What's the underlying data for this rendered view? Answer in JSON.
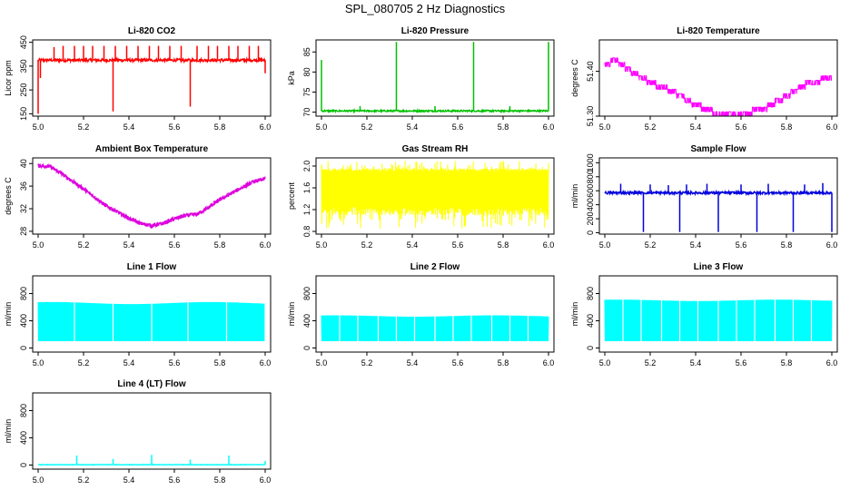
{
  "title": "SPL_080705  2 Hz Diagnostics",
  "chart_data": [
    {
      "type": "line",
      "title": "Li-820 CO2",
      "ylabel": "Licor ppm",
      "xlabel": "",
      "xlim": [
        5.0,
        6.0
      ],
      "ylim": [
        140,
        460
      ],
      "xticks": [
        "5.0",
        "5.2",
        "5.4",
        "5.6",
        "5.8",
        "6.0"
      ],
      "yticks": [
        "150",
        "250",
        "350",
        "450"
      ],
      "color": "#ff0000",
      "pattern": "flat",
      "base": 375,
      "noise": 6,
      "spikes": [
        {
          "x": 5.0,
          "y": 150
        },
        {
          "x": 5.01,
          "y": 300
        },
        {
          "x": 5.07,
          "y": 430
        },
        {
          "x": 5.11,
          "y": 435
        },
        {
          "x": 5.16,
          "y": 435
        },
        {
          "x": 5.2,
          "y": 435
        },
        {
          "x": 5.24,
          "y": 435
        },
        {
          "x": 5.29,
          "y": 435
        },
        {
          "x": 5.33,
          "y": 160
        },
        {
          "x": 5.34,
          "y": 435
        },
        {
          "x": 5.39,
          "y": 435
        },
        {
          "x": 5.44,
          "y": 435
        },
        {
          "x": 5.49,
          "y": 435
        },
        {
          "x": 5.53,
          "y": 435
        },
        {
          "x": 5.58,
          "y": 435
        },
        {
          "x": 5.63,
          "y": 435
        },
        {
          "x": 5.67,
          "y": 180
        },
        {
          "x": 5.7,
          "y": 435
        },
        {
          "x": 5.75,
          "y": 435
        },
        {
          "x": 5.79,
          "y": 435
        },
        {
          "x": 5.84,
          "y": 435
        },
        {
          "x": 5.88,
          "y": 435
        },
        {
          "x": 5.93,
          "y": 435
        },
        {
          "x": 5.97,
          "y": 435
        },
        {
          "x": 6.0,
          "y": 320
        }
      ]
    },
    {
      "type": "line",
      "title": "Li-820 Pressure",
      "ylabel": "kPa",
      "xlabel": "",
      "xlim": [
        5.0,
        6.0
      ],
      "ylim": [
        69,
        88
      ],
      "xticks": [
        "5.0",
        "5.2",
        "5.4",
        "5.6",
        "5.8",
        "6.0"
      ],
      "yticks": [
        "70",
        "75",
        "80",
        "85"
      ],
      "color": "#00c000",
      "pattern": "flat",
      "base": 70.3,
      "noise": 0.2,
      "spikes": [
        {
          "x": 5.0,
          "y": 83
        },
        {
          "x": 5.17,
          "y": 71.5
        },
        {
          "x": 5.33,
          "y": 87.5
        },
        {
          "x": 5.5,
          "y": 71.5
        },
        {
          "x": 5.67,
          "y": 87.5
        },
        {
          "x": 5.83,
          "y": 71.5
        },
        {
          "x": 6.0,
          "y": 87.5
        }
      ]
    },
    {
      "type": "line",
      "title": "Li-820 Temperature",
      "ylabel": "degrees C",
      "xlabel": "",
      "xlim": [
        5.0,
        6.0
      ],
      "ylim": [
        51.3,
        51.47
      ],
      "xticks": [
        "5.0",
        "5.2",
        "5.4",
        "5.6",
        "5.8",
        "6.0"
      ],
      "yticks": [
        "51.30",
        "51.40"
      ],
      "color": "#ff00ff",
      "pattern": "steps",
      "profile": [
        [
          5.0,
          51.42
        ],
        [
          5.05,
          51.43
        ],
        [
          5.1,
          51.41
        ],
        [
          5.2,
          51.38
        ],
        [
          5.3,
          51.36
        ],
        [
          5.4,
          51.33
        ],
        [
          5.5,
          51.31
        ],
        [
          5.6,
          51.31
        ],
        [
          5.7,
          51.32
        ],
        [
          5.8,
          51.35
        ],
        [
          5.9,
          51.38
        ],
        [
          6.0,
          51.39
        ]
      ]
    },
    {
      "type": "line",
      "title": "Ambient Box Temperature",
      "ylabel": "degrees C",
      "xlabel": "",
      "xlim": [
        5.0,
        6.0
      ],
      "ylim": [
        27.5,
        41
      ],
      "xticks": [
        "5.0",
        "5.2",
        "5.4",
        "5.6",
        "5.8",
        "6.0"
      ],
      "yticks": [
        "28",
        "32",
        "36",
        "40"
      ],
      "color": "#dd00dd",
      "pattern": "profile",
      "noise": 0.35,
      "profile": [
        [
          5.0,
          39.6
        ],
        [
          5.05,
          39.5
        ],
        [
          5.1,
          38.3
        ],
        [
          5.2,
          35.5
        ],
        [
          5.3,
          32.5
        ],
        [
          5.4,
          30.3
        ],
        [
          5.45,
          29.4
        ],
        [
          5.5,
          29.0
        ],
        [
          5.55,
          29.4
        ],
        [
          5.6,
          30.2
        ],
        [
          5.65,
          30.8
        ],
        [
          5.7,
          31.0
        ],
        [
          5.75,
          32.2
        ],
        [
          5.8,
          33.6
        ],
        [
          5.9,
          35.8
        ],
        [
          5.95,
          36.8
        ],
        [
          6.0,
          37.3
        ]
      ]
    },
    {
      "type": "line",
      "title": "Gas Stream RH",
      "ylabel": "percent",
      "xlabel": "",
      "xlim": [
        5.0,
        6.0
      ],
      "ylim": [
        0.75,
        2.15
      ],
      "xticks": [
        "5.0",
        "5.2",
        "5.4",
        "5.6",
        "5.8",
        "6.0"
      ],
      "yticks": [
        "0.8",
        "1.2",
        "1.6",
        "2.0"
      ],
      "color": "#ffff00",
      "pattern": "band",
      "bandLow": 1.25,
      "bandHigh": 1.9,
      "extLow": 0.85,
      "extHigh": 2.1
    },
    {
      "type": "line",
      "title": "Sample Flow",
      "ylabel": "ml/min",
      "xlabel": "",
      "xlim": [
        5.0,
        6.0
      ],
      "ylim": [
        -20,
        1070
      ],
      "xticks": [
        "5.0",
        "5.2",
        "5.4",
        "5.6",
        "5.8",
        "6.0"
      ],
      "yticks": [
        "0",
        "200",
        "400",
        "600",
        "800",
        "1000"
      ],
      "color": "#0000dd",
      "pattern": "flat",
      "base": 570,
      "noise": 18,
      "spikes": [
        {
          "x": 5.17,
          "y": 10
        },
        {
          "x": 5.33,
          "y": 10
        },
        {
          "x": 5.5,
          "y": 10
        },
        {
          "x": 5.67,
          "y": 10
        },
        {
          "x": 5.83,
          "y": 10
        },
        {
          "x": 6.0,
          "y": 10
        },
        {
          "x": 5.07,
          "y": 700
        },
        {
          "x": 5.2,
          "y": 690
        },
        {
          "x": 5.28,
          "y": 680
        },
        {
          "x": 5.36,
          "y": 690
        },
        {
          "x": 5.45,
          "y": 700
        },
        {
          "x": 5.6,
          "y": 690
        },
        {
          "x": 5.72,
          "y": 700
        },
        {
          "x": 5.88,
          "y": 690
        },
        {
          "x": 5.96,
          "y": 710
        }
      ]
    },
    {
      "type": "line",
      "title": "Line 1 Flow",
      "ylabel": "ml/min",
      "xlabel": "",
      "xlim": [
        5.0,
        6.0
      ],
      "ylim": [
        -60,
        1060
      ],
      "xticks": [
        "5.0",
        "5.2",
        "5.4",
        "5.6",
        "5.8",
        "6.0"
      ],
      "yticks": [
        "0",
        "400",
        "800"
      ],
      "color": "#00ffff",
      "pattern": "block",
      "low": 100,
      "high": 660,
      "bump": 30,
      "gaps": [
        5.16,
        5.33,
        5.5,
        5.66,
        5.83,
        6.0
      ]
    },
    {
      "type": "line",
      "title": "Line 2 Flow",
      "ylabel": "ml/min",
      "xlabel": "",
      "xlim": [
        5.0,
        6.0
      ],
      "ylim": [
        -60,
        1060
      ],
      "xticks": [
        "5.0",
        "5.2",
        "5.4",
        "5.6",
        "5.8",
        "6.0"
      ],
      "yticks": [
        "0",
        "400",
        "800"
      ],
      "color": "#00ffff",
      "pattern": "block",
      "low": 100,
      "high": 470,
      "bump": 20,
      "gaps": [
        5.08,
        5.16,
        5.25,
        5.33,
        5.41,
        5.5,
        5.58,
        5.66,
        5.75,
        5.83,
        5.91
      ]
    },
    {
      "type": "line",
      "title": "Line 3 Flow",
      "ylabel": "ml/min",
      "xlabel": "",
      "xlim": [
        5.0,
        6.0
      ],
      "ylim": [
        -60,
        1060
      ],
      "xticks": [
        "5.0",
        "5.2",
        "5.4",
        "5.6",
        "5.8",
        "6.0"
      ],
      "yticks": [
        "0",
        "400",
        "800"
      ],
      "color": "#00ffff",
      "pattern": "block",
      "low": 100,
      "high": 700,
      "bump": 20,
      "gaps": [
        5.08,
        5.16,
        5.25,
        5.33,
        5.41,
        5.5,
        5.58,
        5.66,
        5.75,
        5.83,
        5.91
      ]
    },
    {
      "type": "line",
      "title": "Line 4 (LT) Flow",
      "ylabel": "ml/min",
      "xlabel": "",
      "xlim": [
        5.0,
        6.0
      ],
      "ylim": [
        -60,
        1060
      ],
      "xticks": [
        "5.0",
        "5.2",
        "5.4",
        "5.6",
        "5.8",
        "6.0"
      ],
      "yticks": [
        "0",
        "400",
        "800"
      ],
      "color": "#00ffff",
      "pattern": "flat",
      "base": 5,
      "noise": 3,
      "spikes": [
        {
          "x": 5.17,
          "y": 140
        },
        {
          "x": 5.33,
          "y": 90
        },
        {
          "x": 5.5,
          "y": 150
        },
        {
          "x": 5.67,
          "y": 80
        },
        {
          "x": 5.84,
          "y": 140
        },
        {
          "x": 6.0,
          "y": 60
        }
      ]
    }
  ]
}
